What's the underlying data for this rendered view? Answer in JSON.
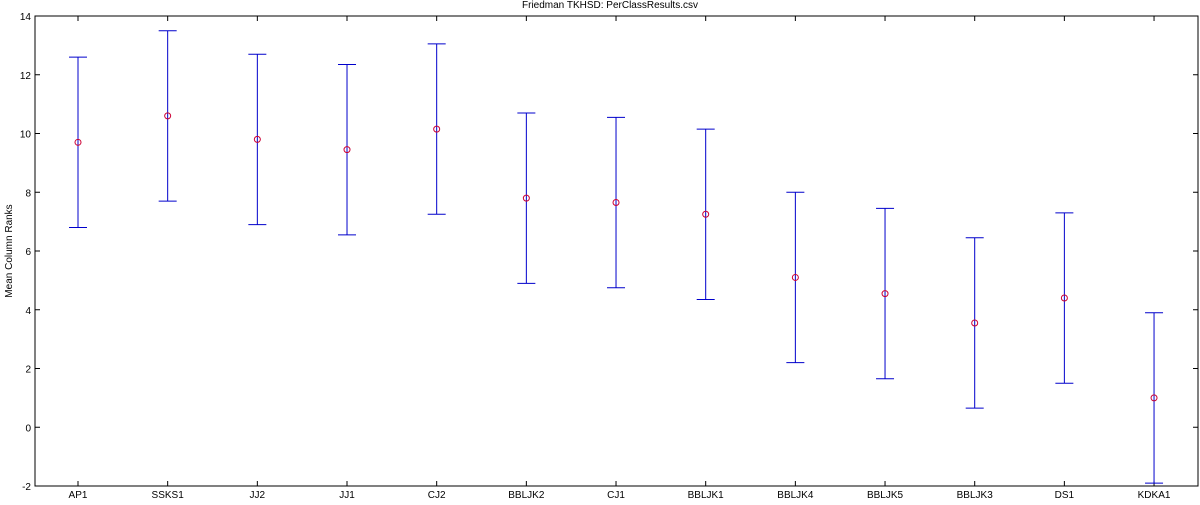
{
  "chart_data": {
    "type": "scatter",
    "title": "Friedman TKHSD: PerClassResults.csv",
    "xlabel": "",
    "ylabel": "Mean Column Ranks",
    "ylim": [
      -2,
      14
    ],
    "yticks": [
      -2,
      0,
      2,
      4,
      6,
      8,
      10,
      12,
      14
    ],
    "grid": false,
    "categories": [
      "AP1",
      "SSKS1",
      "JJ2",
      "JJ1",
      "CJ2",
      "BBLJK2",
      "CJ1",
      "BBLJK1",
      "BBLJK4",
      "BBLJK5",
      "BBLJK3",
      "DS1",
      "KDKA1"
    ],
    "series": [
      {
        "values": [
          9.7,
          10.6,
          9.8,
          9.45,
          10.15,
          7.8,
          7.65,
          7.25,
          5.1,
          4.55,
          3.55,
          4.4,
          1.0
        ],
        "lower": [
          6.8,
          7.7,
          6.9,
          6.55,
          7.25,
          4.9,
          4.75,
          4.35,
          2.2,
          1.65,
          0.65,
          1.5,
          -1.9
        ],
        "upper": [
          12.6,
          13.5,
          12.7,
          12.35,
          13.05,
          10.7,
          10.55,
          10.15,
          8.0,
          7.45,
          6.45,
          7.3,
          3.9
        ],
        "marker_color": "#cc0033",
        "errorbar_color": "#0000cc"
      }
    ]
  }
}
